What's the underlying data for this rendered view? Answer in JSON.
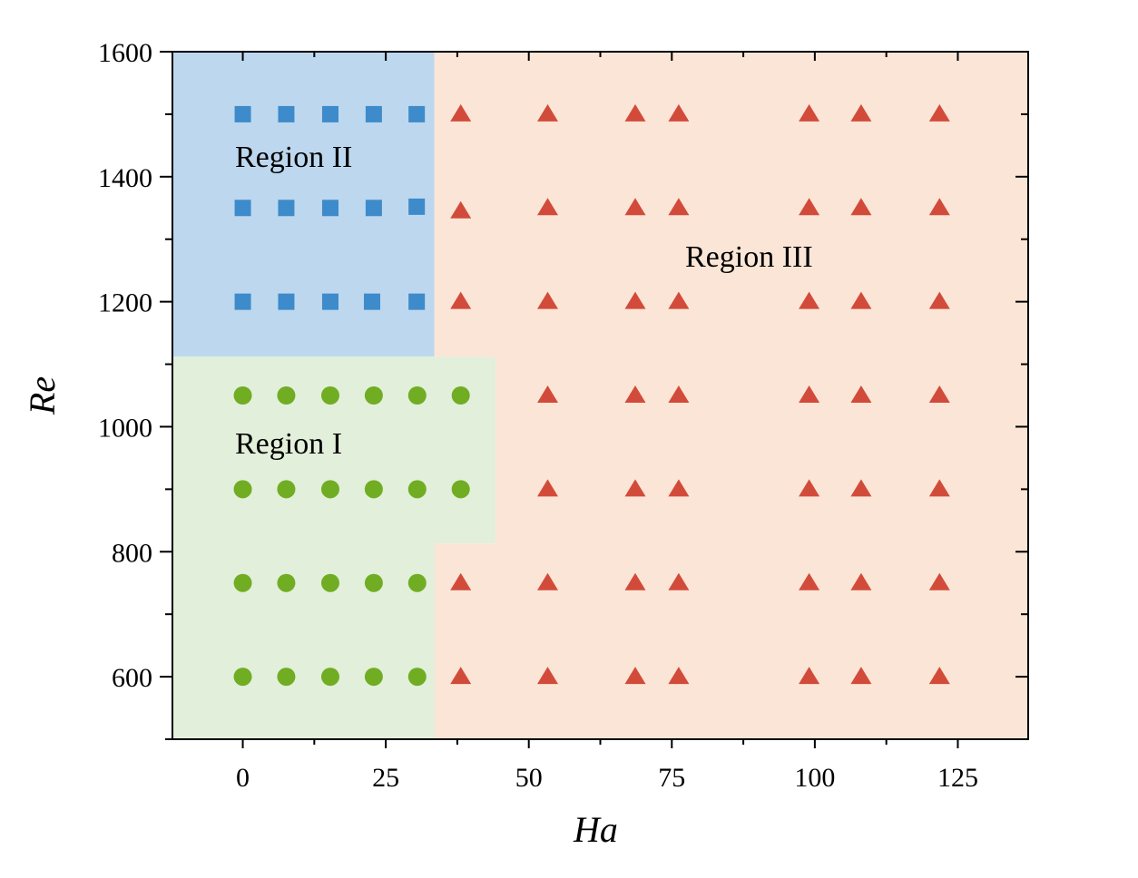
{
  "chart_data": {
    "type": "scatter",
    "xlabel": "Ha",
    "ylabel": "Re",
    "xlim": [
      -12.3,
      137.3
    ],
    "ylim": [
      500,
      1600
    ],
    "x_ticks": [
      "0",
      "25",
      "50",
      "75",
      "100",
      "125"
    ],
    "y_ticks": [
      "600",
      "800",
      "1000",
      "1200",
      "1400",
      "1600"
    ],
    "grid": false,
    "legend": "none",
    "regions": [
      {
        "label": "Region II",
        "color": "#bdd7ee",
        "polygon": [
          [
            -12.3,
            1112
          ],
          [
            33.5,
            1112
          ],
          [
            33.5,
            1600
          ],
          [
            -12.3,
            1600
          ]
        ]
      },
      {
        "label": "Region I",
        "color": "#e2efda",
        "polygon": [
          [
            -12.3,
            500
          ],
          [
            33.5,
            500
          ],
          [
            33.5,
            813
          ],
          [
            44.2,
            813
          ],
          [
            44.2,
            1112
          ],
          [
            -12.3,
            1112
          ]
        ]
      },
      {
        "label": "Region III",
        "color": "#fbe5d6",
        "polygon": [
          [
            33.5,
            500
          ],
          [
            33.5,
            813
          ],
          [
            44.2,
            813
          ],
          [
            44.2,
            1112
          ],
          [
            33.5,
            1112
          ],
          [
            33.5,
            1600
          ],
          [
            137.3,
            1600
          ],
          [
            137.3,
            500
          ]
        ]
      }
    ],
    "series": [
      {
        "marker": "square",
        "color": "#3d8bca",
        "points": [
          [
            0,
            1500
          ],
          [
            7.6,
            1500
          ],
          [
            15.3,
            1500
          ],
          [
            22.9,
            1500
          ],
          [
            30.4,
            1500
          ],
          [
            0,
            1350
          ],
          [
            7.6,
            1350
          ],
          [
            15.3,
            1350
          ],
          [
            22.9,
            1350
          ],
          [
            30.4,
            1352
          ],
          [
            0,
            1200
          ],
          [
            7.6,
            1200
          ],
          [
            15.3,
            1200
          ],
          [
            22.6,
            1200
          ],
          [
            30.4,
            1200
          ]
        ]
      },
      {
        "marker": "circle",
        "color": "#70ad23",
        "points": [
          [
            0,
            1050
          ],
          [
            7.6,
            1050
          ],
          [
            15.3,
            1050
          ],
          [
            22.9,
            1050
          ],
          [
            30.5,
            1050
          ],
          [
            38.1,
            1050
          ],
          [
            0,
            900
          ],
          [
            7.6,
            900
          ],
          [
            15.3,
            900
          ],
          [
            22.9,
            900
          ],
          [
            30.5,
            900
          ],
          [
            38.1,
            900
          ],
          [
            0,
            750
          ],
          [
            7.6,
            750
          ],
          [
            15.3,
            750
          ],
          [
            22.9,
            750
          ],
          [
            30.5,
            750
          ],
          [
            0,
            600
          ],
          [
            7.6,
            600
          ],
          [
            15.3,
            600
          ],
          [
            22.9,
            600
          ],
          [
            30.5,
            600
          ]
        ]
      },
      {
        "marker": "triangle",
        "color": "#d24b3a",
        "points": [
          [
            38.1,
            1500
          ],
          [
            53.3,
            1500
          ],
          [
            68.6,
            1500
          ],
          [
            76.2,
            1500
          ],
          [
            99.0,
            1500
          ],
          [
            108.1,
            1500
          ],
          [
            121.8,
            1500
          ],
          [
            38.1,
            1345
          ],
          [
            53.3,
            1350
          ],
          [
            68.6,
            1350
          ],
          [
            76.2,
            1350
          ],
          [
            99.0,
            1350
          ],
          [
            108.1,
            1350
          ],
          [
            121.8,
            1350
          ],
          [
            38.1,
            1200
          ],
          [
            53.3,
            1200
          ],
          [
            68.6,
            1200
          ],
          [
            76.2,
            1200
          ],
          [
            99.0,
            1200
          ],
          [
            108.1,
            1200
          ],
          [
            121.8,
            1200
          ],
          [
            53.3,
            1050
          ],
          [
            68.6,
            1050
          ],
          [
            76.2,
            1050
          ],
          [
            99.0,
            1050
          ],
          [
            108.1,
            1050
          ],
          [
            121.8,
            1050
          ],
          [
            53.3,
            900
          ],
          [
            68.6,
            900
          ],
          [
            76.2,
            900
          ],
          [
            99.0,
            900
          ],
          [
            108.1,
            900
          ],
          [
            121.8,
            900
          ],
          [
            38.1,
            750
          ],
          [
            53.3,
            750
          ],
          [
            68.6,
            750
          ],
          [
            76.2,
            750
          ],
          [
            99.0,
            750
          ],
          [
            108.1,
            750
          ],
          [
            121.8,
            750
          ],
          [
            38.1,
            600
          ],
          [
            53.3,
            600
          ],
          [
            68.6,
            600
          ],
          [
            76.2,
            600
          ],
          [
            99.0,
            600
          ],
          [
            108.1,
            600
          ],
          [
            121.8,
            600
          ]
        ]
      }
    ]
  }
}
